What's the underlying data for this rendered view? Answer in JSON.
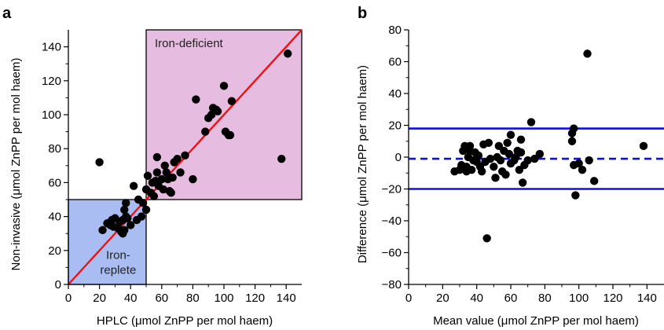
{
  "figure": {
    "panel_a": "a",
    "panel_b": "b"
  },
  "chart_data": [
    {
      "type": "scatter",
      "panel": "a",
      "xlabel": "HPLC (μmol ZnPP per mol haem)",
      "ylabel": "Non-invasive (μmol ZnPP per mol haem)",
      "xlim": [
        0,
        150
      ],
      "ylim": [
        0,
        150
      ],
      "xticks": [
        0,
        20,
        40,
        60,
        80,
        100,
        120,
        140
      ],
      "yticks": [
        0,
        20,
        40,
        60,
        80,
        100,
        120,
        140
      ],
      "regions": [
        {
          "label": "Iron-deficient",
          "x": [
            50,
            150
          ],
          "y": [
            50,
            150
          ],
          "color": "#e6bde0"
        },
        {
          "label_lines": [
            "Iron-",
            "replete"
          ],
          "x": [
            0,
            50
          ],
          "y": [
            0,
            50
          ],
          "color": "#a9bdf2"
        }
      ],
      "identity_line": {
        "x": [
          0,
          150
        ],
        "y": [
          0,
          150
        ],
        "color": "#ee1111"
      },
      "points": [
        [
          20,
          72
        ],
        [
          22,
          32
        ],
        [
          25,
          36
        ],
        [
          27,
          35
        ],
        [
          28,
          38
        ],
        [
          29,
          34
        ],
        [
          30,
          39
        ],
        [
          32,
          33
        ],
        [
          33,
          37
        ],
        [
          34,
          31
        ],
        [
          35,
          30
        ],
        [
          35,
          38
        ],
        [
          36,
          32
        ],
        [
          37,
          40
        ],
        [
          36,
          44
        ],
        [
          37,
          48
        ],
        [
          38,
          39
        ],
        [
          40,
          35
        ],
        [
          42,
          58
        ],
        [
          44,
          38
        ],
        [
          45,
          50
        ],
        [
          47,
          40
        ],
        [
          48,
          48
        ],
        [
          50,
          44
        ],
        [
          50,
          56
        ],
        [
          51,
          64
        ],
        [
          53,
          54
        ],
        [
          54,
          60
        ],
        [
          55,
          52
        ],
        [
          56,
          61
        ],
        [
          57,
          66
        ],
        [
          57,
          75
        ],
        [
          58,
          58
        ],
        [
          60,
          62
        ],
        [
          61,
          56
        ],
        [
          62,
          70
        ],
        [
          63,
          66
        ],
        [
          64,
          62
        ],
        [
          65,
          55
        ],
        [
          66,
          54
        ],
        [
          67,
          63
        ],
        [
          68,
          72
        ],
        [
          70,
          74
        ],
        [
          72,
          66
        ],
        [
          75,
          76
        ],
        [
          80,
          62
        ],
        [
          82,
          109
        ],
        [
          88,
          90
        ],
        [
          90,
          98
        ],
        [
          92,
          100
        ],
        [
          93,
          104
        ],
        [
          95,
          103
        ],
        [
          96,
          102
        ],
        [
          100,
          117
        ],
        [
          101,
          90
        ],
        [
          103,
          88
        ],
        [
          104,
          88
        ],
        [
          105,
          108
        ],
        [
          137,
          74
        ],
        [
          141,
          136
        ]
      ]
    },
    {
      "type": "scatter",
      "panel": "b",
      "xlabel": "Mean value (μmol ZnPP per mol haem)",
      "ylabel": "Difference (μmol ZnPP per mol haem)",
      "xlim": [
        0,
        150
      ],
      "ylim": [
        -80,
        80
      ],
      "xticks": [
        0,
        20,
        40,
        60,
        80,
        100,
        120,
        140
      ],
      "yticks": [
        -80,
        -60,
        -40,
        -20,
        0,
        20,
        40,
        60,
        80
      ],
      "reference_lines": [
        {
          "y": 18,
          "style": "solid",
          "color": "#1010dd"
        },
        {
          "y": -1,
          "style": "dashed",
          "color": "#1010dd"
        },
        {
          "y": -20,
          "style": "solid",
          "color": "#1010dd"
        }
      ],
      "points": [
        [
          27,
          -9
        ],
        [
          30,
          -8
        ],
        [
          31,
          -5
        ],
        [
          32,
          4
        ],
        [
          33,
          7
        ],
        [
          34,
          -6
        ],
        [
          34,
          -9
        ],
        [
          35,
          0
        ],
        [
          36,
          4
        ],
        [
          36,
          7
        ],
        [
          37,
          -8
        ],
        [
          38,
          -2
        ],
        [
          39,
          3
        ],
        [
          40,
          -3
        ],
        [
          41,
          1
        ],
        [
          42,
          -6
        ],
        [
          43,
          -9
        ],
        [
          44,
          8
        ],
        [
          45,
          -3
        ],
        [
          46,
          -51
        ],
        [
          47,
          9
        ],
        [
          48,
          -1
        ],
        [
          50,
          -6
        ],
        [
          51,
          -13
        ],
        [
          52,
          0
        ],
        [
          53,
          7
        ],
        [
          54,
          -2
        ],
        [
          55,
          -9
        ],
        [
          56,
          4
        ],
        [
          57,
          -11
        ],
        [
          58,
          9
        ],
        [
          59,
          2
        ],
        [
          60,
          14
        ],
        [
          60,
          -4
        ],
        [
          62,
          -2
        ],
        [
          63,
          0
        ],
        [
          64,
          4
        ],
        [
          65,
          -8
        ],
        [
          66,
          3
        ],
        [
          66,
          11
        ],
        [
          67,
          -16
        ],
        [
          68,
          -5
        ],
        [
          70,
          -2
        ],
        [
          72,
          22
        ],
        [
          74,
          -1
        ],
        [
          77,
          2
        ],
        [
          96,
          10
        ],
        [
          96,
          15
        ],
        [
          97,
          -5
        ],
        [
          97,
          18
        ],
        [
          98,
          -24
        ],
        [
          100,
          -4
        ],
        [
          102,
          -8
        ],
        [
          106,
          -2
        ],
        [
          105,
          65
        ],
        [
          109,
          -15
        ],
        [
          138,
          7
        ]
      ]
    }
  ]
}
